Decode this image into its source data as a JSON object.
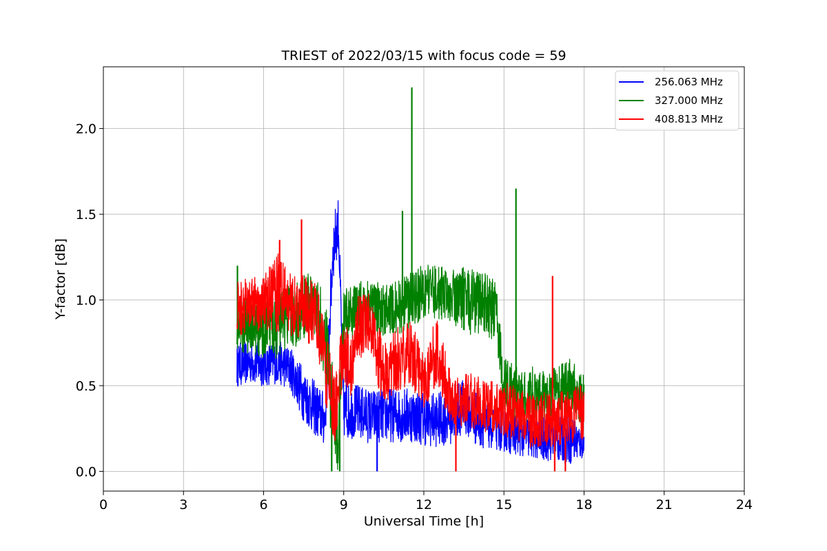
{
  "chart_data": {
    "type": "line",
    "title": "TRIEST of 2022/03/15 with focus code = 59",
    "xlabel": "Universal Time [h]",
    "ylabel": "Y-factor [dB]",
    "xlim": [
      0,
      24
    ],
    "ylim": [
      -0.115,
      2.36
    ],
    "xticks": [
      0,
      3,
      6,
      9,
      12,
      15,
      18,
      21,
      24
    ],
    "xtick_labels": [
      "0",
      "3",
      "6",
      "9",
      "12",
      "15",
      "18",
      "21",
      "24"
    ],
    "yticks": [
      0.0,
      0.5,
      1.0,
      1.5,
      2.0
    ],
    "ytick_labels": [
      "0.0",
      "0.5",
      "1.0",
      "1.5",
      "2.0"
    ],
    "grid": true,
    "legend_position": "top-right",
    "series": [
      {
        "name": "256.063 MHz",
        "color": "#0000ff",
        "x": [
          5.0,
          5.5,
          6.0,
          6.5,
          7.0,
          7.5,
          8.0,
          8.3,
          8.6,
          8.8,
          9.0,
          9.5,
          10.0,
          10.5,
          11.0,
          11.5,
          12.0,
          12.5,
          13.0,
          13.5,
          14.0,
          14.5,
          15.0,
          15.5,
          16.0,
          16.5,
          17.0,
          17.5,
          18.0
        ],
        "values": [
          0.62,
          0.64,
          0.62,
          0.64,
          0.6,
          0.45,
          0.35,
          0.3,
          1.3,
          1.45,
          0.35,
          0.35,
          0.32,
          0.33,
          0.33,
          0.33,
          0.31,
          0.3,
          0.32,
          0.38,
          0.3,
          0.26,
          0.24,
          0.22,
          0.2,
          0.19,
          0.18,
          0.2,
          0.15
        ],
        "spread": [
          0.08,
          0.08,
          0.08,
          0.08,
          0.08,
          0.1,
          0.1,
          0.1,
          0.12,
          0.1,
          0.1,
          0.1,
          0.1,
          0.1,
          0.1,
          0.1,
          0.1,
          0.1,
          0.1,
          0.1,
          0.1,
          0.08,
          0.08,
          0.08,
          0.08,
          0.08,
          0.08,
          0.1,
          0.05
        ],
        "spikes": [
          [
            10.25,
            0.0
          ],
          [
            9.1,
            0.7
          ]
        ]
      },
      {
        "name": "327.000 MHz",
        "color": "#008000",
        "x": [
          5.0,
          5.5,
          6.0,
          6.5,
          7.0,
          7.5,
          8.0,
          8.5,
          8.8,
          9.0,
          9.5,
          10.0,
          10.5,
          11.0,
          11.5,
          12.0,
          12.5,
          13.0,
          13.5,
          14.0,
          14.5,
          14.7,
          15.0,
          15.5,
          16.0,
          16.5,
          17.0,
          17.5,
          18.0
        ],
        "values": [
          0.85,
          0.85,
          0.82,
          0.85,
          0.9,
          0.95,
          1.0,
          0.55,
          0.2,
          0.9,
          0.95,
          0.95,
          0.95,
          0.95,
          1.0,
          1.05,
          1.05,
          1.02,
          1.0,
          0.98,
          0.95,
          0.95,
          0.5,
          0.45,
          0.45,
          0.45,
          0.45,
          0.5,
          0.4
        ],
        "spread": [
          0.1,
          0.1,
          0.1,
          0.12,
          0.12,
          0.12,
          0.12,
          0.2,
          0.15,
          0.1,
          0.1,
          0.1,
          0.1,
          0.1,
          0.1,
          0.1,
          0.1,
          0.1,
          0.12,
          0.12,
          0.12,
          0.1,
          0.1,
          0.1,
          0.1,
          0.1,
          0.1,
          0.1,
          0.1
        ],
        "spikes": [
          [
            5.02,
            1.2
          ],
          [
            11.2,
            1.52
          ],
          [
            11.55,
            2.24
          ],
          [
            15.45,
            1.65
          ],
          [
            8.55,
            0.0
          ],
          [
            8.85,
            0.0
          ]
        ]
      },
      {
        "name": "408.813 MHz",
        "color": "#ff0000",
        "x": [
          5.0,
          5.5,
          6.0,
          6.5,
          7.0,
          7.5,
          8.0,
          8.5,
          8.7,
          9.0,
          9.3,
          9.5,
          10.0,
          10.5,
          11.0,
          11.5,
          12.0,
          12.5,
          13.0,
          13.5,
          14.0,
          14.5,
          15.0,
          15.5,
          16.0,
          16.5,
          17.0,
          17.5,
          18.0
        ],
        "values": [
          0.95,
          0.97,
          0.98,
          1.05,
          0.98,
          0.95,
          0.9,
          0.45,
          0.4,
          0.7,
          0.6,
          0.85,
          0.85,
          0.55,
          0.65,
          0.7,
          0.55,
          0.7,
          0.42,
          0.42,
          0.4,
          0.38,
          0.36,
          0.34,
          0.3,
          0.3,
          0.3,
          0.32,
          0.35
        ],
        "spread": [
          0.1,
          0.1,
          0.1,
          0.15,
          0.12,
          0.12,
          0.12,
          0.15,
          0.15,
          0.12,
          0.12,
          0.12,
          0.12,
          0.12,
          0.12,
          0.12,
          0.12,
          0.12,
          0.1,
          0.1,
          0.1,
          0.1,
          0.1,
          0.1,
          0.1,
          0.1,
          0.1,
          0.1,
          0.1
        ],
        "spikes": [
          [
            7.42,
            1.47
          ],
          [
            6.6,
            1.35
          ],
          [
            16.82,
            1.14
          ],
          [
            13.2,
            0.0
          ],
          [
            16.9,
            0.0
          ],
          [
            17.3,
            0.0
          ]
        ]
      }
    ]
  }
}
